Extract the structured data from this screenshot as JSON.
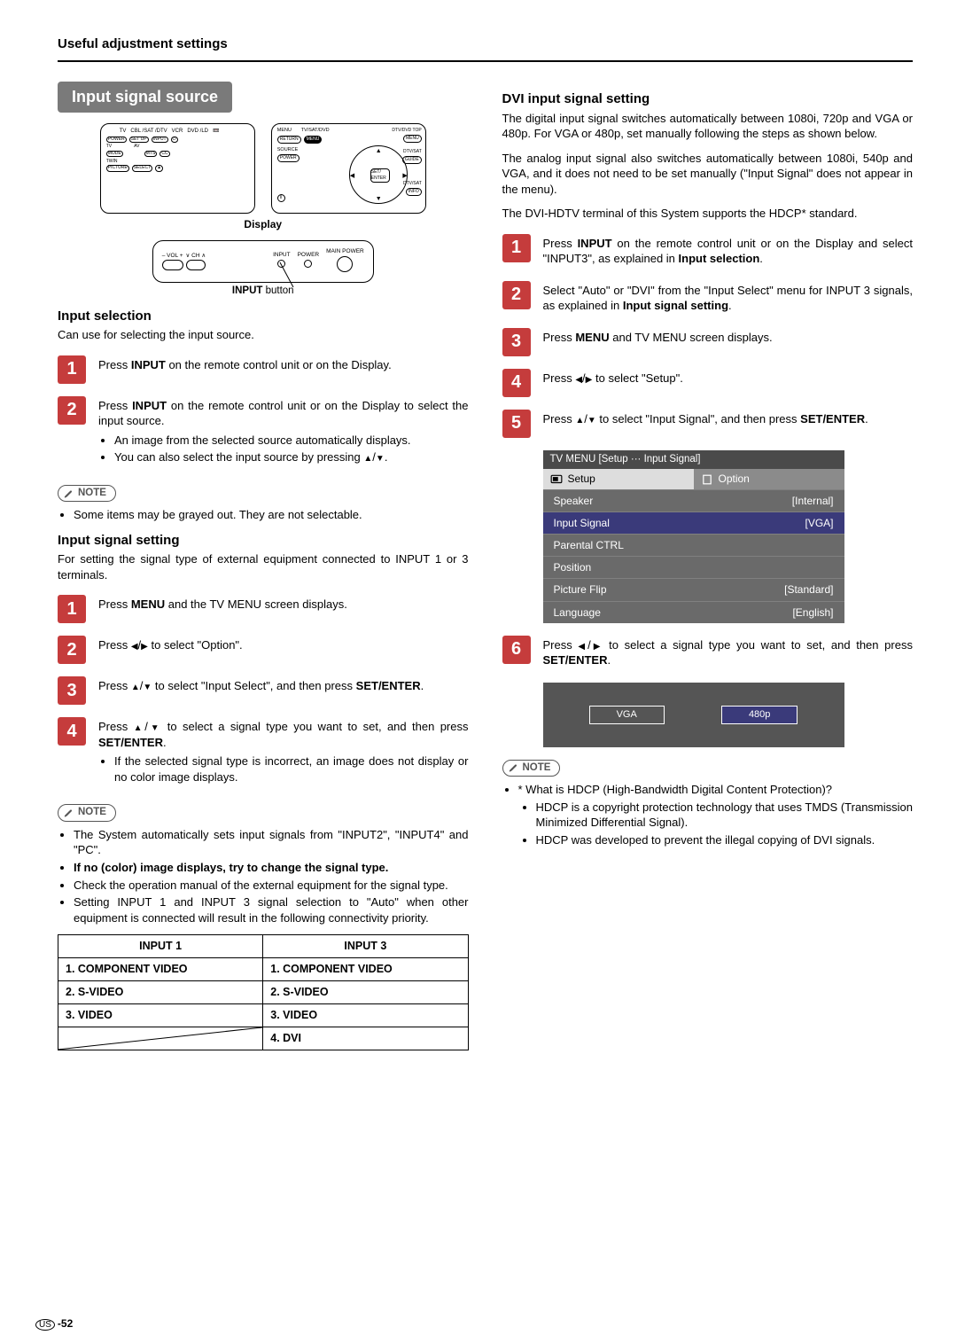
{
  "page": {
    "header": "Useful adjustment settings",
    "footer_region": "US",
    "footer_page": "-52"
  },
  "left": {
    "pill": "Input signal source",
    "display_label": "Display",
    "input_btn_caption_strong": "INPUT",
    "input_btn_caption_rest": " button",
    "avr": {
      "vol": "VOL",
      "ch": "CH",
      "input": "INPUT",
      "power": "POWER",
      "main": "MAIN POWER"
    },
    "remote1": {
      "row1": [
        "TV",
        "CBL /SAT /DTV",
        "VCR",
        "DVD /LD",
        ""
      ],
      "row2_label_tv": "TV",
      "row2_label_av": "AV",
      "power": "POWER",
      "setup": "SET UP",
      "input": "INPUT",
      "mode": "MODE",
      "mts": "MTS",
      "cc": "CC",
      "twin": "TWIN",
      "picture": "PICTURE",
      "select": "SELECT"
    },
    "remote2": {
      "top_l": "MENU",
      "top_c": "TV/SAT/DVD",
      "top_r": "DTV/DVD TOP",
      "return": "RETURN",
      "menu": "MENU",
      "menu2": "MENU",
      "source": "SOURCE",
      "power": "POWER",
      "set_enter": "SET/ ENTER",
      "guide": "GUIDE",
      "info": "INFO",
      "pause": "II",
      "dtvsat": "DTV/SAT"
    },
    "sel": {
      "title": "Input selection",
      "desc": "Can use for selecting the input source.",
      "step1": {
        "pre": "Press ",
        "btn": "INPUT",
        "post": " on the remote control unit or on the Display."
      },
      "step2": {
        "pre": "Press ",
        "btn": "INPUT",
        "post": " on the remote control unit or on the Display to select the input source.",
        "b1": "An image from the selected source automatically displays.",
        "b2_pre": "You can also select the input source by pressing ",
        "b2_post": "."
      },
      "note1": "Some items may be grayed out. They are not selectable."
    },
    "set": {
      "title": "Input signal setting",
      "desc": "For setting the signal type of external equipment connected to INPUT 1 or 3 terminals.",
      "s1_pre": "Press ",
      "s1_btn": "MENU",
      "s1_post": " and the TV MENU screen displays.",
      "s2_pre": "Press ",
      "s2_post": " to select \"Option\".",
      "s3_pre": "Press ",
      "s3_mid": " to select \"Input Select\", and then press ",
      "s3_btn": "SET/ENTER",
      "s3_post": ".",
      "s4_pre": "Press ",
      "s4_mid": " to select a signal type you want to set, and then press ",
      "s4_btn": "SET/ENTER",
      "s4_post": ".",
      "s4_b1": "If the selected signal type is incorrect, an image does not display or no color image displays.",
      "notes": [
        "The System automatically sets input signals from \"INPUT2\", \"INPUT4\" and \"PC\".",
        "If no (color) image displays, try to change the signal type.",
        "Check the operation manual of the external equipment for the signal type.",
        "Setting INPUT 1 and INPUT 3 signal selection to \"Auto\" when other equipment is connected will result in the following connectivity priority."
      ],
      "note_bold_idx": 1
    },
    "table": {
      "h1": "INPUT 1",
      "h2": "INPUT 3",
      "r1a": "1. COMPONENT VIDEO",
      "r1b": "1. COMPONENT VIDEO",
      "r2a": "2. S-VIDEO",
      "r2b": "2. S-VIDEO",
      "r3a": "3. VIDEO",
      "r3b": "3. VIDEO",
      "r4b": "4. DVI"
    }
  },
  "right": {
    "title": "DVI input signal setting",
    "p1": "The digital input signal switches automatically between 1080i, 720p and VGA or 480p. For VGA or 480p, set manually following the steps as shown below.",
    "p2": "The analog input signal also switches automatically between 1080i, 540p and VGA, and it does not need to be set manually (\"Input Signal\" does not appear in the menu).",
    "p3": "The DVI-HDTV terminal of this System supports the HDCP* standard.",
    "s1_pre": "Press ",
    "s1_btn": "INPUT",
    "s1_mid": " on the remote control unit or on the Display and select \"INPUT3\", as explained in ",
    "s1_b2": "Input selection",
    "s1_post": ".",
    "s2_pre": "Select \"Auto\" or \"DVI\" from the \"Input Select\" menu for INPUT 3 signals, as explained in ",
    "s2_b": "Input signal setting",
    "s2_post": ".",
    "s3_pre": "Press ",
    "s3_btn": "MENU",
    "s3_post": " and TV MENU screen displays.",
    "s4_pre": "Press ",
    "s4_post": " to select \"Setup\".",
    "s5_pre": "Press ",
    "s5_mid": " to select \"Input Signal\", and then press ",
    "s5_btn": "SET/ENTER",
    "s5_post": ".",
    "menu": {
      "hdr": "TV MENU    [Setup ··· Input Signal]",
      "tab1": "Setup",
      "tab2": "Option",
      "rows": [
        [
          "Speaker",
          "[Internal]"
        ],
        [
          "Input Signal",
          "[VGA]"
        ],
        [
          "Parental CTRL",
          ""
        ],
        [
          "Position",
          ""
        ],
        [
          "Picture Flip",
          "[Standard]"
        ],
        [
          "Language",
          "[English]"
        ]
      ],
      "sel_row": 1
    },
    "s6_pre": "Press ",
    "s6_mid": " to select a signal type you want to set, and then press ",
    "s6_btn": "SET/ENTER",
    "s6_post": ".",
    "sig": {
      "a": "VGA",
      "b": "480p"
    },
    "notes": {
      "q": "* What is HDCP (High-Bandwidth Digital Content Protection)?",
      "b1": "HDCP is a copyright protection technology that uses TMDS (Transmission Minimized Differential Signal).",
      "b2": "HDCP was developed to prevent the illegal copying of DVI signals."
    }
  },
  "colors": {
    "step_bg": "#c53c3c",
    "pill_bg": "#7a7a7a",
    "menu_bg": "#6a6a6a",
    "menu_sel": "#3a3a7a"
  }
}
